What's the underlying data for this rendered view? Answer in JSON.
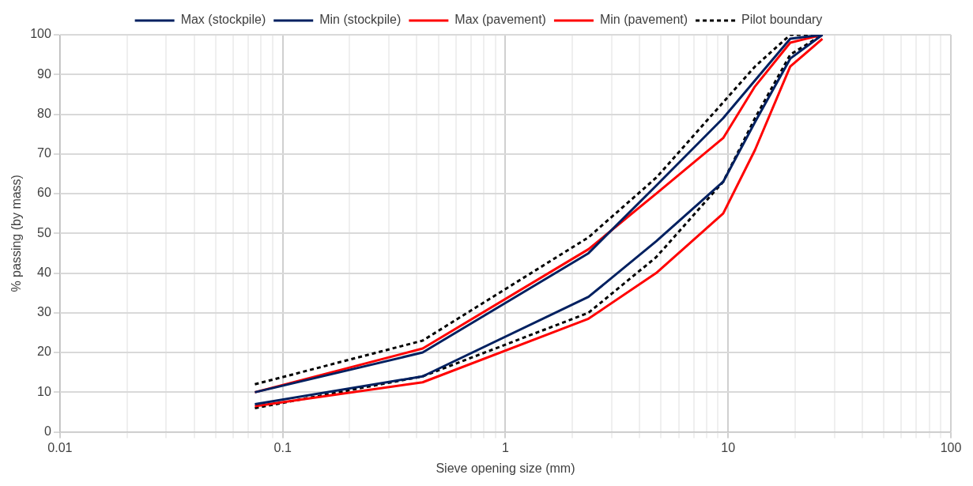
{
  "chart_data": {
    "type": "line",
    "xlabel": "Sieve opening size (mm)",
    "ylabel": "% passing (by mass)",
    "log": "x",
    "grid": true,
    "legend": "top",
    "marker": "none",
    "x": [
      0.075,
      0.425,
      2.36,
      4.75,
      9.5,
      13.2,
      19,
      26.5
    ],
    "xlim": [
      0.01,
      100
    ],
    "ylim": [
      0,
      100
    ],
    "xticks": [
      0.01,
      {
        "value": 0.02,
        "label": null
      },
      {
        "value": 0.03,
        "label": null
      },
      {
        "value": 0.04,
        "label": null
      },
      {
        "value": 0.05,
        "label": null
      },
      {
        "value": 0.06,
        "label": null
      },
      {
        "value": 0.07,
        "label": null
      },
      {
        "value": 0.08,
        "label": null
      },
      {
        "value": 0.09,
        "label": null
      },
      0.1,
      {
        "value": 0.2,
        "label": null
      },
      {
        "value": 0.3,
        "label": null
      },
      {
        "value": 0.4,
        "label": null
      },
      {
        "value": 0.5,
        "label": null
      },
      {
        "value": 0.6,
        "label": null
      },
      {
        "value": 0.7,
        "label": null
      },
      {
        "value": 0.8,
        "label": null
      },
      {
        "value": 0.9,
        "label": null
      },
      1,
      {
        "value": 2,
        "label": null
      },
      {
        "value": 3,
        "label": null
      },
      {
        "value": 4,
        "label": null
      },
      {
        "value": 5,
        "label": null
      },
      {
        "value": 6,
        "label": null
      },
      {
        "value": 7,
        "label": null
      },
      {
        "value": 8,
        "label": null
      },
      {
        "value": 9,
        "label": null
      },
      10,
      {
        "value": 20,
        "label": null
      },
      {
        "value": 30,
        "label": null
      },
      {
        "value": 40,
        "label": null
      },
      {
        "value": 50,
        "label": null
      },
      {
        "value": 60,
        "label": null
      },
      {
        "value": 70,
        "label": null
      },
      {
        "value": 80,
        "label": null
      },
      {
        "value": 90,
        "label": null
      },
      100
    ],
    "yticks": [
      0,
      10,
      20,
      30,
      40,
      50,
      60,
      70,
      80,
      90,
      100
    ],
    "series": [
      {
        "name": "Max (stockpile)",
        "color": "#002060",
        "line_style": "solid",
        "values": [
          10,
          20,
          45,
          62,
          79,
          88.5,
          99,
          100
        ]
      },
      {
        "name": "Min (stockpile)",
        "color": "#002060",
        "line_style": "solid",
        "values": [
          7,
          14,
          34,
          48,
          63,
          78,
          94,
          100
        ]
      },
      {
        "name": "Max (pavement)",
        "color": "#ff0000",
        "line_style": "solid",
        "values": [
          10,
          21,
          46,
          60,
          74,
          87,
          98,
          100
        ]
      },
      {
        "name": "Min (pavement)",
        "color": "#ff0000",
        "line_style": "solid",
        "values": [
          6.5,
          12.5,
          28.5,
          40,
          55,
          71,
          92,
          99
        ]
      },
      {
        "name": "Pilot boundary",
        "color": "#000000",
        "line_style": "dashed",
        "values": [
          12,
          23,
          49,
          64,
          83,
          92,
          100,
          100
        ]
      },
      {
        "color": "#000000",
        "line_style": "dashed",
        "values": [
          6,
          14,
          30,
          44,
          63,
          79,
          95,
          100
        ]
      }
    ]
  }
}
